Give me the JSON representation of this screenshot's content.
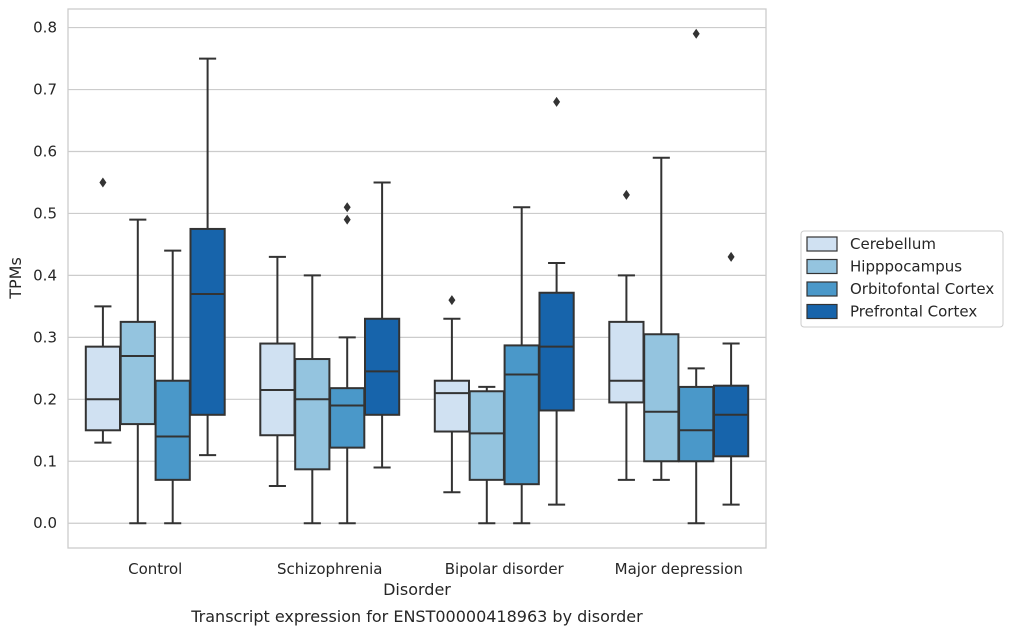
{
  "caption": "Transcript expression for ENST00000418963 by disorder",
  "chart_data": {
    "type": "box",
    "xlabel": "Disorder",
    "ylabel": "TPMs",
    "ylim": [
      -0.04,
      0.83
    ],
    "yticks": [
      "0.0",
      "0.1",
      "0.2",
      "0.3",
      "0.4",
      "0.5",
      "0.6",
      "0.7",
      "0.8"
    ],
    "grid": "horizontal",
    "legend_position": "outside-right",
    "categories": [
      "Control",
      "Schizophrenia",
      "Bipolar disorder",
      "Major depression"
    ],
    "series": [
      {
        "name": "Cerebellum",
        "color": "#d0e1f2",
        "boxes": [
          {
            "whislo": 0.13,
            "q1": 0.15,
            "med": 0.2,
            "q3": 0.285,
            "whishi": 0.35,
            "fliers": [
              0.55
            ]
          },
          {
            "whislo": 0.06,
            "q1": 0.142,
            "med": 0.215,
            "q3": 0.29,
            "whishi": 0.43,
            "fliers": []
          },
          {
            "whislo": 0.05,
            "q1": 0.148,
            "med": 0.21,
            "q3": 0.23,
            "whishi": 0.33,
            "fliers": [
              0.36
            ]
          },
          {
            "whislo": 0.07,
            "q1": 0.195,
            "med": 0.23,
            "q3": 0.325,
            "whishi": 0.4,
            "fliers": [
              0.53
            ]
          }
        ]
      },
      {
        "name": "Hipppocampus",
        "color": "#94c4df",
        "boxes": [
          {
            "whislo": 0.0,
            "q1": 0.16,
            "med": 0.27,
            "q3": 0.325,
            "whishi": 0.49,
            "fliers": []
          },
          {
            "whislo": 0.0,
            "q1": 0.087,
            "med": 0.2,
            "q3": 0.265,
            "whishi": 0.4,
            "fliers": []
          },
          {
            "whislo": 0.0,
            "q1": 0.07,
            "med": 0.145,
            "q3": 0.213,
            "whishi": 0.22,
            "fliers": []
          },
          {
            "whislo": 0.07,
            "q1": 0.1,
            "med": 0.18,
            "q3": 0.305,
            "whishi": 0.59,
            "fliers": []
          }
        ]
      },
      {
        "name": "Orbitofontal Cortex",
        "color": "#4a98c9",
        "boxes": [
          {
            "whislo": 0.0,
            "q1": 0.07,
            "med": 0.14,
            "q3": 0.23,
            "whishi": 0.44,
            "fliers": []
          },
          {
            "whislo": 0.0,
            "q1": 0.122,
            "med": 0.19,
            "q3": 0.218,
            "whishi": 0.3,
            "fliers": [
              0.49,
              0.51
            ]
          },
          {
            "whislo": 0.0,
            "q1": 0.063,
            "med": 0.24,
            "q3": 0.287,
            "whishi": 0.51,
            "fliers": []
          },
          {
            "whislo": 0.0,
            "q1": 0.1,
            "med": 0.15,
            "q3": 0.22,
            "whishi": 0.25,
            "fliers": [
              0.79
            ]
          }
        ]
      },
      {
        "name": "Prefrontal Cortex",
        "color": "#1764ab",
        "boxes": [
          {
            "whislo": 0.11,
            "q1": 0.175,
            "med": 0.37,
            "q3": 0.475,
            "whishi": 0.75,
            "fliers": []
          },
          {
            "whislo": 0.09,
            "q1": 0.175,
            "med": 0.245,
            "q3": 0.33,
            "whishi": 0.55,
            "fliers": []
          },
          {
            "whislo": 0.03,
            "q1": 0.182,
            "med": 0.285,
            "q3": 0.372,
            "whishi": 0.42,
            "fliers": [
              0.68
            ]
          },
          {
            "whislo": 0.03,
            "q1": 0.108,
            "med": 0.175,
            "q3": 0.222,
            "whishi": 0.29,
            "fliers": [
              0.43
            ]
          }
        ]
      }
    ]
  }
}
